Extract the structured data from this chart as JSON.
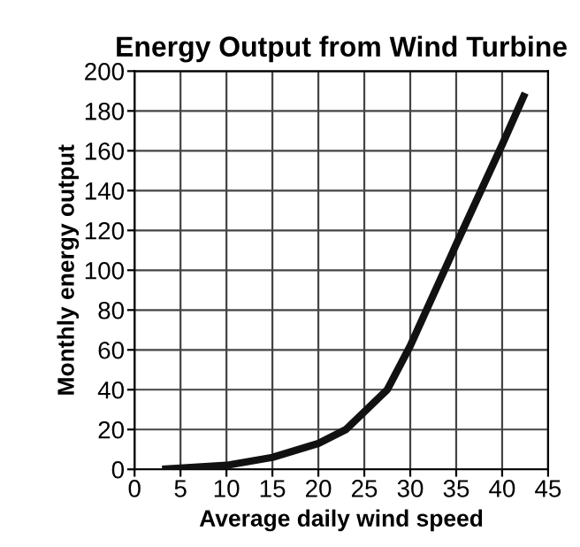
{
  "chart_data": {
    "type": "line",
    "title": "Energy Output from Wind Turbine",
    "xlabel": "Average daily wind speed",
    "ylabel": "Monthly energy output",
    "x": [
      3,
      10,
      15,
      20,
      23,
      27.5,
      30,
      35,
      40,
      42.5
    ],
    "series": [
      {
        "color": "#111111",
        "values": [
          0,
          2,
          6,
          13,
          20,
          40,
          62,
          113,
          163,
          189
        ]
      }
    ],
    "xlim": [
      0,
      45
    ],
    "xticks": [
      0,
      5,
      10,
      15,
      20,
      25,
      30,
      35,
      40,
      45
    ],
    "ylim": [
      0,
      200
    ],
    "yticks": [
      0,
      20,
      40,
      60,
      80,
      100,
      120,
      140,
      160,
      180,
      200
    ],
    "grid": true,
    "marker": "none",
    "line_style": "solid"
  }
}
